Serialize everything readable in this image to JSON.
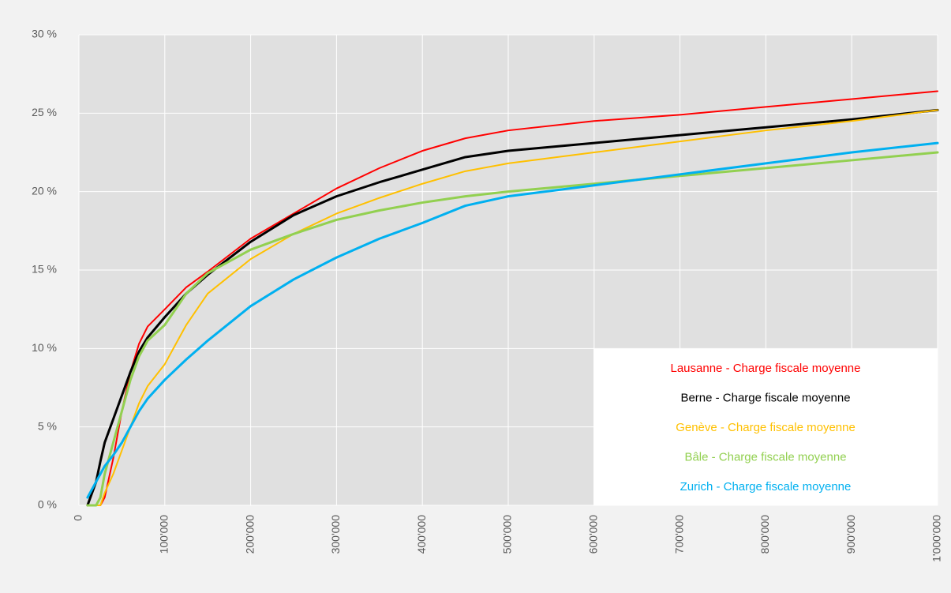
{
  "chart_data": {
    "type": "line",
    "x": [
      10000,
      20000,
      25000,
      30000,
      40000,
      50000,
      60000,
      70000,
      80000,
      100000,
      125000,
      150000,
      200000,
      250000,
      300000,
      350000,
      400000,
      450000,
      500000,
      600000,
      700000,
      800000,
      900000,
      1000000
    ],
    "series": [
      {
        "name": "Lausanne - Charge fiscale moyenne",
        "color": "#ff0000",
        "values": [
          null,
          0,
          0,
          0.5,
          3,
          6,
          8.5,
          10.3,
          11.4,
          12.5,
          13.9,
          14.9,
          17,
          18.6,
          20.2,
          21.5,
          22.6,
          23.4,
          23.9,
          24.5,
          24.9,
          25.4,
          25.9,
          26.4
        ]
      },
      {
        "name": "Berne - Charge fiscale moyenne",
        "color": "#000000",
        "values": [
          0,
          1.5,
          2.8,
          4,
          5.5,
          7,
          8.5,
          9.8,
          10.7,
          12,
          13.5,
          14.7,
          16.8,
          18.5,
          19.7,
          20.6,
          21.4,
          22.2,
          22.6,
          23.1,
          23.6,
          24.1,
          24.6,
          25.2
        ]
      },
      {
        "name": "Genève - Charge fiscale moyenne",
        "color": "#ffc000",
        "values": [
          null,
          0,
          0,
          0.8,
          2,
          3.5,
          5,
          6.5,
          7.6,
          9,
          11.5,
          13.5,
          15.7,
          17.3,
          18.6,
          19.6,
          20.5,
          21.3,
          21.8,
          22.5,
          23.2,
          23.9,
          24.5,
          25.2
        ]
      },
      {
        "name": "Bâle - Charge fiscale moyenne",
        "color": "#92d050",
        "values": [
          0,
          0,
          0.5,
          2,
          4,
          6,
          8,
          9.5,
          10.5,
          11.5,
          13.5,
          14.8,
          16.3,
          17.3,
          18.2,
          18.8,
          19.3,
          19.7,
          20,
          20.5,
          21,
          21.5,
          22,
          22.5
        ]
      },
      {
        "name": "Zurich - Charge fiscale moyenne",
        "color": "#00b0f0",
        "values": [
          0.5,
          1.5,
          2,
          2.5,
          3.2,
          4,
          5,
          6,
          6.8,
          8,
          9.3,
          10.5,
          12.7,
          14.4,
          15.8,
          17,
          18,
          19.1,
          19.7,
          20.4,
          21.1,
          21.8,
          22.5,
          23.1
        ]
      }
    ],
    "xlim": [
      0,
      1000000
    ],
    "xticks": [
      0,
      {
        "value": 100000,
        "label": "100'000"
      },
      {
        "value": 200000,
        "label": "200'000"
      },
      {
        "value": 300000,
        "label": "300'000"
      },
      {
        "value": 400000,
        "label": "400'000"
      },
      {
        "value": 500000,
        "label": "500'000"
      },
      {
        "value": 600000,
        "label": "600'000"
      },
      {
        "value": 700000,
        "label": "700'000"
      },
      {
        "value": 800000,
        "label": "800'000"
      },
      {
        "value": 900000,
        "label": "900'000"
      },
      {
        "value": 1000000,
        "label": "1'000'000"
      }
    ],
    "ylim": [
      0,
      30
    ],
    "yticks": [
      {
        "value": 0,
        "label": "0 %"
      },
      {
        "value": 5,
        "label": "5 %"
      },
      {
        "value": 10,
        "label": "10 %"
      },
      {
        "value": 15,
        "label": "15 %"
      },
      {
        "value": 20,
        "label": "20 %"
      },
      {
        "value": 25,
        "label": "25 %"
      },
      {
        "value": 30,
        "label": "30 %"
      }
    ],
    "grid": true,
    "legend": "lower right"
  }
}
